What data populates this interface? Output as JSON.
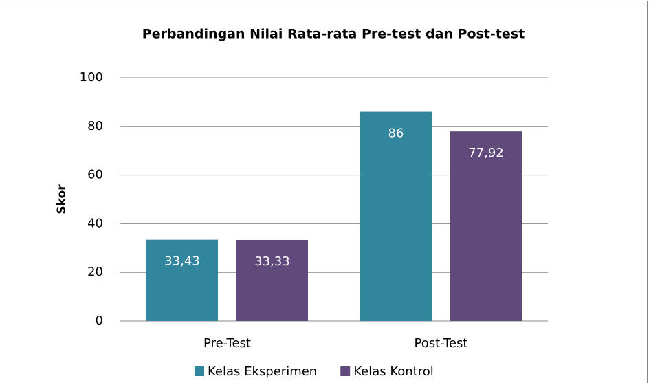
{
  "chart_data": {
    "type": "bar",
    "title": "Perbandingan Nilai Rata-rata Pre-test dan Post-test",
    "y_label": "Skor",
    "categories": [
      "Pre-Test",
      "Post-Test"
    ],
    "series": [
      {
        "name": "Kelas Eksperimen",
        "color": "#31859c",
        "values": [
          33.43,
          86
        ],
        "value_labels": [
          "33,43",
          "86"
        ]
      },
      {
        "name": "Kelas Kontrol",
        "color": "#604a7b",
        "values": [
          33.33,
          77.92
        ],
        "value_labels": [
          "33,33",
          "77,92"
        ]
      }
    ],
    "ylim": [
      0,
      100
    ],
    "yticks": [
      0,
      20,
      40,
      60,
      80,
      100
    ],
    "grid": true,
    "legend": "bottom"
  }
}
